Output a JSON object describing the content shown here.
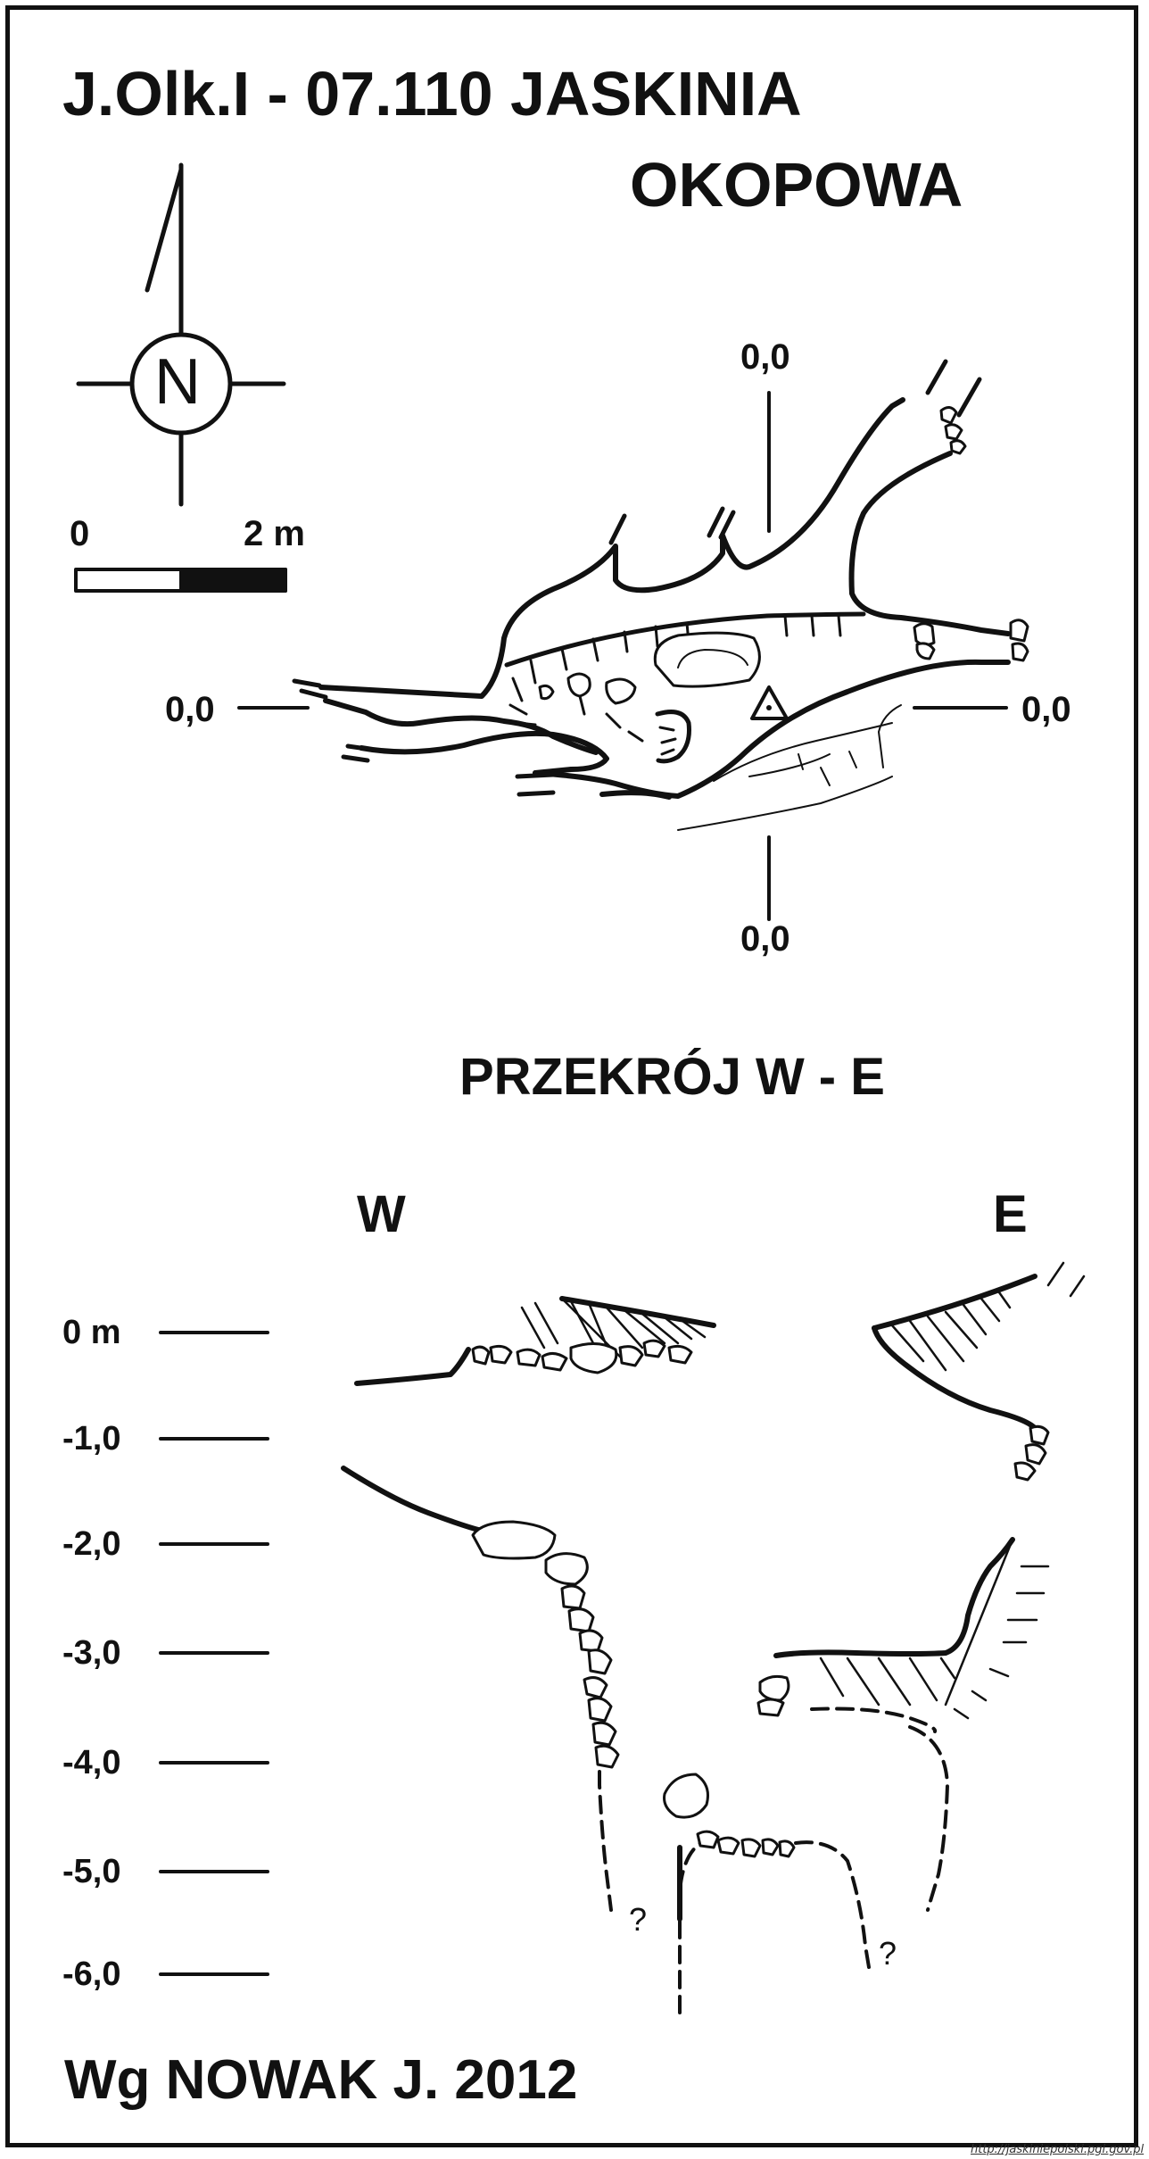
{
  "title": {
    "line1": "J.Olk.I - 07.110  JASKINIA",
    "line2": "OKOPOWA"
  },
  "compass": {
    "letter": "N"
  },
  "scale_bar": {
    "start": "0",
    "end": "2 m"
  },
  "plan": {
    "datum_top": "0,0",
    "datum_left": "0,0",
    "datum_right": "0,0",
    "datum_bottom": "0,0"
  },
  "section": {
    "title": "PRZEKRÓJ W - E",
    "west": "W",
    "east": "E",
    "depths": [
      "0 m",
      "-1,0",
      "-2,0",
      "-3,0",
      "-4,0",
      "-5,0",
      "-6,0"
    ],
    "unknown_marks": [
      "?",
      "?"
    ]
  },
  "credit": "Wg NOWAK J. 2012",
  "source_url": "http://jaskiniepolski.pgi.gov.pl"
}
